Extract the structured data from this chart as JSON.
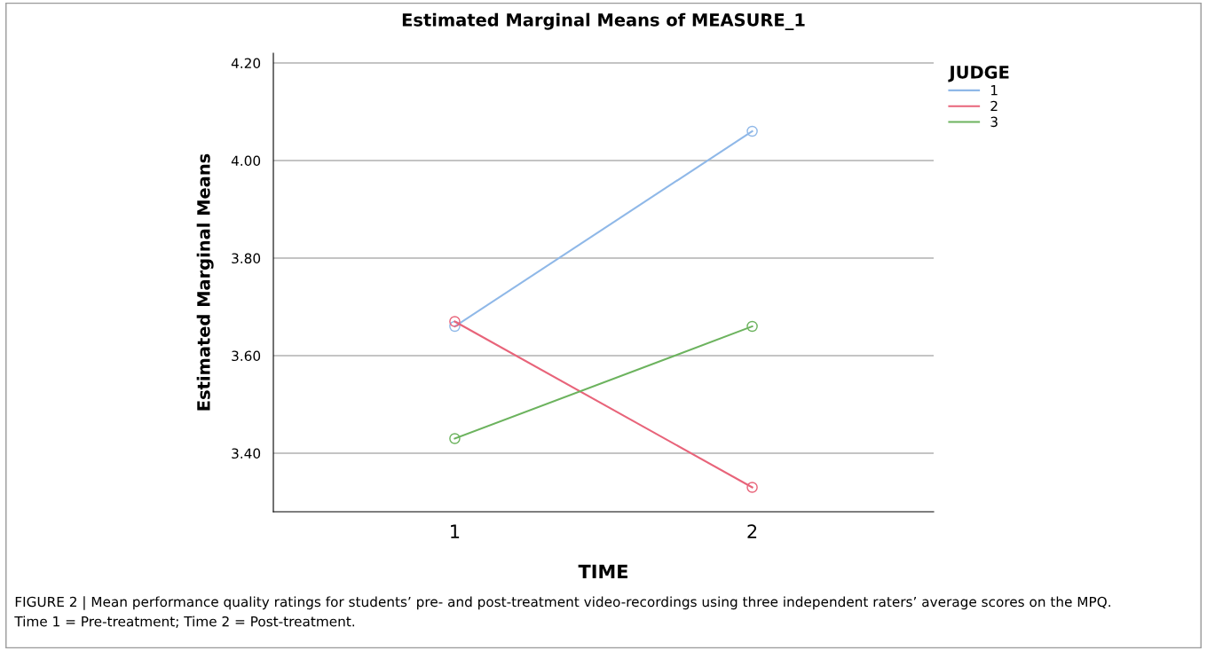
{
  "chart_data": {
    "type": "line",
    "title": "Estimated Marginal Means of MEASURE_1",
    "xlabel": "TIME",
    "ylabel": "Estimated Marginal Means",
    "legend_title": "JUDGE",
    "categories": [
      "1",
      "2"
    ],
    "series": [
      {
        "name": "1",
        "color": "#8fb8e8",
        "values": [
          3.66,
          4.06
        ]
      },
      {
        "name": "2",
        "color": "#e8647a",
        "values": [
          3.67,
          3.33
        ]
      },
      {
        "name": "3",
        "color": "#6cb35e",
        "values": [
          3.43,
          3.66
        ]
      }
    ],
    "ylim": [
      3.28,
      4.22
    ],
    "yticks": [
      {
        "value": 3.4,
        "label": "3.40"
      },
      {
        "value": 3.6,
        "label": "3.60"
      },
      {
        "value": 3.8,
        "label": "3.80"
      },
      {
        "value": 4.0,
        "label": "4.00"
      },
      {
        "value": 4.2,
        "label": "4.20"
      }
    ],
    "grid": "y",
    "legend": "top right",
    "marker": "circle",
    "line_style": "solid",
    "annotations": [
      "FIGURE 2 | Mean performance quality ratings for students’ pre- and post-treatment video-recordings using three independent raters’ average scores on the MPQ.",
      "Time 1 = Pre-treatment; Time 2 = Post-treatment."
    ]
  }
}
